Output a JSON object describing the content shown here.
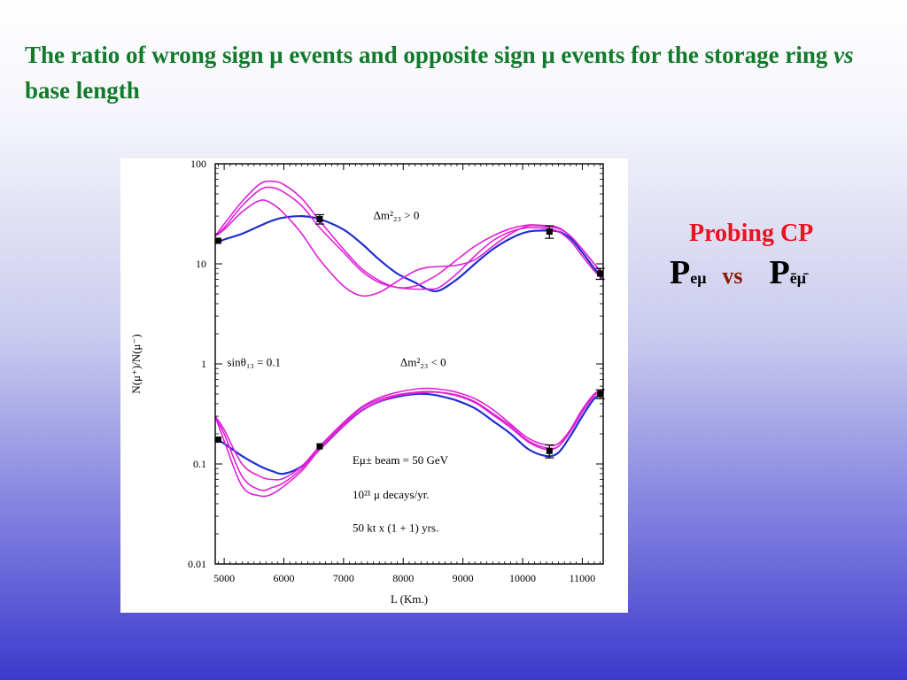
{
  "title": {
    "part1": "The ratio of wrong sign μ events and opposite sign μ events for the storage ring ",
    "part2_italic": "vs",
    "part3": " base length"
  },
  "side_note": {
    "heading": "Probing CP",
    "p_left": "P",
    "p_left_sub": "eμ",
    "vs": "vs",
    "p_right": "P",
    "p_right_sub": "ēμ̄"
  },
  "chart_data": {
    "type": "line",
    "xlabel": "L (Km.)",
    "ylabel": "N(μ⁺)/N(μ⁻)",
    "xlim": [
      4850,
      11350
    ],
    "ylim": [
      0.01,
      100
    ],
    "yscale": "log",
    "x_ticks": [
      5000,
      6000,
      7000,
      8000,
      9000,
      10000,
      11000
    ],
    "x_tick_labels": [
      "5000",
      "6000",
      "7000",
      "8000",
      "9000",
      "10000",
      "11000"
    ],
    "y_ticks": [
      100,
      10,
      1,
      0.1,
      0.01
    ],
    "y_tick_labels": [
      "100",
      "10",
      "1",
      "0.1",
      "0.01"
    ],
    "annotations": [
      {
        "text": "Δm²₂₃ > 0",
        "x": 7500,
        "y": 28
      },
      {
        "text": "sinθ₁₃ = 0.1",
        "x": 5050,
        "y": 0.95
      },
      {
        "text": "Δm²₂₃ < 0",
        "x": 7950,
        "y": 0.95
      },
      {
        "text": "Eμ± beam = 50 GeV",
        "x": 7150,
        "y": 0.1
      },
      {
        "text": "10²¹ μ decays/yr.",
        "x": 7150,
        "y": 0.045
      },
      {
        "text": "50 kt x (1 + 1) yrs.",
        "x": 7150,
        "y": 0.021
      }
    ],
    "x": [
      4850,
      5000,
      5300,
      5600,
      5800,
      6000,
      6300,
      6600,
      7000,
      7300,
      7600,
      7900,
      8200,
      8400,
      8600,
      8900,
      9200,
      9500,
      9800,
      10100,
      10400,
      10600,
      10800,
      11000,
      11200,
      11350
    ],
    "series": [
      {
        "group": "upper",
        "color": "#1f2ed1",
        "values": [
          16,
          17.5,
          20,
          24,
          27,
          29,
          30,
          28,
          22,
          16,
          11,
          8,
          6.5,
          5.6,
          5.4,
          7,
          10,
          14,
          18,
          21,
          21.5,
          21,
          18,
          13,
          9,
          7
        ]
      },
      {
        "group": "upper",
        "color": "#e020d6",
        "values": [
          19,
          25,
          42,
          63,
          67,
          62,
          45,
          27,
          14,
          9,
          6.8,
          5.8,
          6,
          6.8,
          8,
          11,
          15,
          19,
          22.5,
          24.5,
          24,
          23,
          19,
          14,
          10,
          7.5
        ]
      },
      {
        "group": "upper",
        "color": "#e020d6",
        "values": [
          19,
          23,
          38,
          55,
          58,
          52,
          38,
          23,
          13,
          8.5,
          6.5,
          5.8,
          5.6,
          5.6,
          5.8,
          8,
          12,
          17,
          21,
          23,
          22.5,
          21,
          17,
          12,
          8.5,
          7
        ]
      },
      {
        "group": "upper",
        "color": "#e020d6",
        "values": [
          19,
          22,
          33,
          43,
          40,
          32,
          20,
          11,
          6,
          4.8,
          5.2,
          6.7,
          8.5,
          9.2,
          9.4,
          9.7,
          11,
          15,
          20,
          24,
          23.5,
          22.5,
          19,
          14,
          10,
          8
        ]
      },
      {
        "group": "lower",
        "color": "#1f2ed1",
        "values": [
          0.18,
          0.16,
          0.12,
          0.095,
          0.085,
          0.08,
          0.095,
          0.14,
          0.24,
          0.34,
          0.42,
          0.47,
          0.5,
          0.5,
          0.48,
          0.43,
          0.36,
          0.27,
          0.2,
          0.14,
          0.12,
          0.13,
          0.19,
          0.3,
          0.45,
          0.5
        ]
      },
      {
        "group": "lower",
        "color": "#e020d6",
        "values": [
          0.3,
          0.22,
          0.1,
          0.075,
          0.07,
          0.072,
          0.095,
          0.15,
          0.26,
          0.37,
          0.46,
          0.52,
          0.56,
          0.57,
          0.56,
          0.52,
          0.45,
          0.35,
          0.25,
          0.18,
          0.155,
          0.16,
          0.22,
          0.34,
          0.5,
          0.55
        ]
      },
      {
        "group": "lower",
        "color": "#e020d6",
        "values": [
          0.29,
          0.2,
          0.075,
          0.055,
          0.058,
          0.065,
          0.09,
          0.145,
          0.25,
          0.36,
          0.44,
          0.49,
          0.52,
          0.53,
          0.52,
          0.48,
          0.41,
          0.31,
          0.23,
          0.165,
          0.14,
          0.15,
          0.21,
          0.33,
          0.48,
          0.53
        ]
      },
      {
        "group": "lower",
        "color": "#e020d6",
        "values": [
          0.3,
          0.17,
          0.06,
          0.048,
          0.05,
          0.06,
          0.085,
          0.14,
          0.24,
          0.34,
          0.42,
          0.48,
          0.51,
          0.52,
          0.52,
          0.49,
          0.42,
          0.32,
          0.24,
          0.17,
          0.145,
          0.15,
          0.22,
          0.35,
          0.5,
          0.56
        ]
      }
    ],
    "points": [
      {
        "x": 4900,
        "y": 17,
        "err": 0
      },
      {
        "x": 6600,
        "y": 28,
        "err": 3
      },
      {
        "x": 10450,
        "y": 21,
        "err": 3
      },
      {
        "x": 11300,
        "y": 8,
        "err": 1
      },
      {
        "x": 4900,
        "y": 0.175,
        "err": 0
      },
      {
        "x": 6600,
        "y": 0.15,
        "err": 0
      },
      {
        "x": 10450,
        "y": 0.135,
        "err": 0.02
      },
      {
        "x": 11300,
        "y": 0.5,
        "err": 0.05
      }
    ],
    "grid": false,
    "legend": "none"
  }
}
